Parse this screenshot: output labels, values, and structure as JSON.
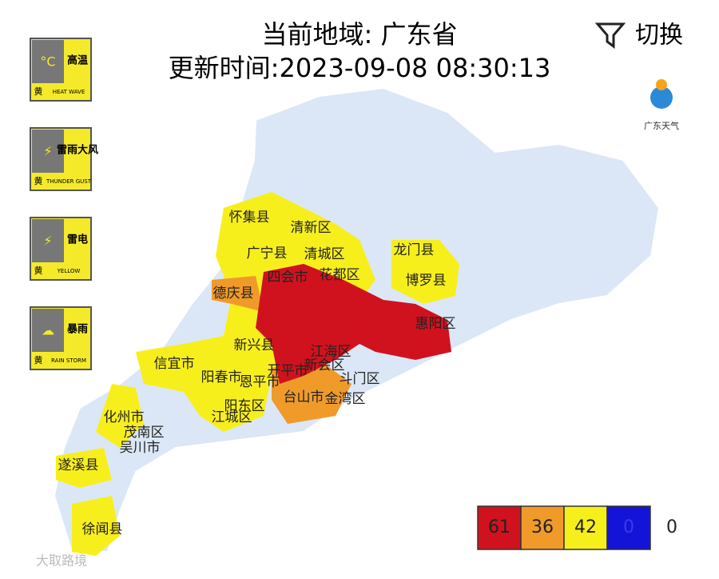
{
  "header": {
    "region": "当前地域: 广东省",
    "update_time": "更新时间:2023-09-08 08:30:13",
    "switch": "切换"
  },
  "warnings": [
    {
      "symbol": "°C",
      "name": "高温",
      "level": "黄",
      "english": "HEAT WAVE"
    },
    {
      "symbol": "⚡",
      "name": "雷雨大风",
      "level": "黄",
      "english": "THUNDER GUST"
    },
    {
      "symbol": "⚡",
      "name": "雷电",
      "level": "黄",
      "english": "YELLOW"
    },
    {
      "symbol": "☁",
      "name": "暴雨",
      "level": "黄",
      "english": "RAIN STORM"
    }
  ],
  "logo": "广东天气",
  "map_labels": [
    "怀集县",
    "清新区",
    "广宁县",
    "清城区",
    "龙门县",
    "四会市",
    "花都区",
    "博罗县",
    "德庆县",
    "惠阳区",
    "新兴县",
    "江海区",
    "信宜市",
    "新会区",
    "阳春市",
    "恩平市",
    "开平市",
    "斗门区",
    "台山市",
    "金湾区",
    "阳东区",
    "江城区",
    "化州市",
    "茂南区",
    "吴川市",
    "遂溪县",
    "徐闻县"
  ],
  "legend": [
    {
      "count": 61,
      "color": "#d0121e"
    },
    {
      "count": 36,
      "color": "#f09a2a"
    },
    {
      "count": 42,
      "color": "#f7ef1c"
    },
    {
      "count": 0,
      "color": "#1414d8"
    },
    {
      "count": 0
    }
  ],
  "watermark": "大取路境"
}
